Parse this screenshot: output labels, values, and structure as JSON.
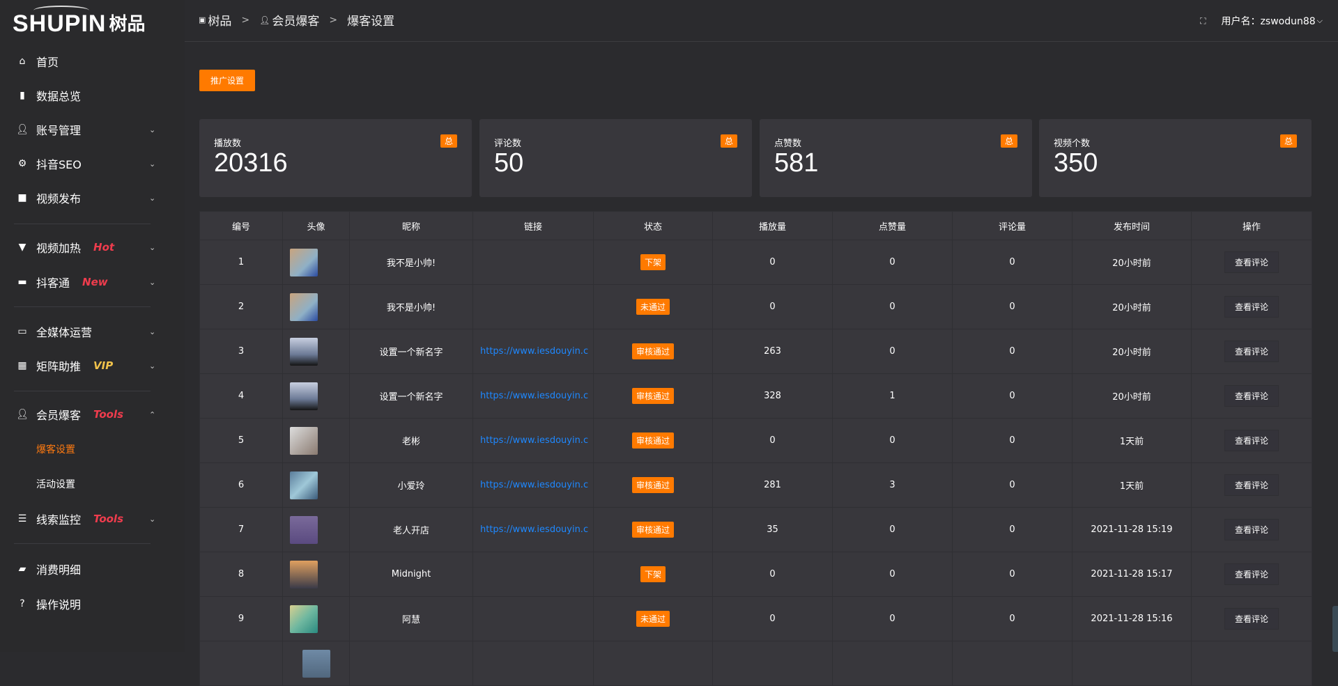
{
  "logo": {
    "text": "SHUPIN",
    "cn": "树品"
  },
  "breadcrumb": [
    {
      "label": "树品",
      "icon": "image-icon"
    },
    {
      "label": "会员爆客",
      "icon": "user-icon"
    },
    {
      "label": "爆客设置"
    }
  ],
  "breadcrumb_sep": ">",
  "user": {
    "label": "用户名：zswodun88",
    "chevron": "⌵"
  },
  "sidebar": {
    "items": [
      {
        "label": "首页",
        "icon": "home-icon"
      },
      {
        "label": "数据总览",
        "icon": "bar-chart-icon"
      },
      {
        "label": "账号管理",
        "icon": "user-icon",
        "chevron": "⌄"
      },
      {
        "label": "抖音SEO",
        "icon": "gear-icon",
        "chevron": "⌄"
      },
      {
        "label": "视频发布",
        "icon": "camera-icon",
        "chevron": "⌄"
      },
      {
        "label": "视频加热",
        "icon": "signboard-icon",
        "tag": "Hot",
        "chevron": "⌄"
      },
      {
        "label": "抖客通",
        "icon": "chat-icon",
        "tag": "New",
        "chevron": "⌄"
      },
      {
        "label": "全媒体运营",
        "icon": "monitor-icon",
        "chevron": "⌄"
      },
      {
        "label": "矩阵助推",
        "icon": "grid-icon",
        "tag": "VIP",
        "chevron": "⌄"
      },
      {
        "label": "会员爆客",
        "icon": "user-icon",
        "tag": "Tools",
        "chevron": "⌃"
      },
      {
        "label": "线索监控",
        "icon": "sliders-icon",
        "tag": "Tools",
        "chevron": "⌄"
      },
      {
        "label": "消费明细",
        "icon": "wallet-icon"
      },
      {
        "label": "操作说明",
        "icon": "help-icon"
      }
    ],
    "subitems": [
      {
        "label": "爆客设置",
        "active": true
      },
      {
        "label": "活动设置"
      }
    ]
  },
  "promo_button": "推广设置",
  "stats": [
    {
      "label": "播放数",
      "value": "20316",
      "badge": "总"
    },
    {
      "label": "评论数",
      "value": "50",
      "badge": "总"
    },
    {
      "label": "点赞数",
      "value": "581",
      "badge": "总"
    },
    {
      "label": "视频个数",
      "value": "350",
      "badge": "总"
    }
  ],
  "table": {
    "headers": [
      "编号",
      "头像",
      "昵称",
      "链接",
      "状态",
      "播放量",
      "点赞量",
      "评论量",
      "发布时间",
      "操作"
    ],
    "rows": [
      {
        "id": "1",
        "nick": "我不是小帅!",
        "link": "",
        "status": "下架",
        "plays": "0",
        "likes": "0",
        "comments": "0",
        "time": "20小时前",
        "action": "查看评论"
      },
      {
        "id": "2",
        "nick": "我不是小帅!",
        "link": "",
        "status": "未通过",
        "plays": "0",
        "likes": "0",
        "comments": "0",
        "time": "20小时前",
        "action": "查看评论"
      },
      {
        "id": "3",
        "nick": "设置一个新名字",
        "link": "https://www.iesdouyin.c",
        "status": "审核通过",
        "plays": "263",
        "likes": "0",
        "comments": "0",
        "time": "20小时前",
        "action": "查看评论"
      },
      {
        "id": "4",
        "nick": "设置一个新名字",
        "link": "https://www.iesdouyin.c",
        "status": "审核通过",
        "plays": "328",
        "likes": "1",
        "comments": "0",
        "time": "20小时前",
        "action": "查看评论"
      },
      {
        "id": "5",
        "nick": "老彬",
        "link": "https://www.iesdouyin.c",
        "status": "审核通过",
        "plays": "0",
        "likes": "0",
        "comments": "0",
        "time": "1天前",
        "action": "查看评论"
      },
      {
        "id": "6",
        "nick": "小爱玲",
        "link": "https://www.iesdouyin.c",
        "status": "审核通过",
        "plays": "281",
        "likes": "3",
        "comments": "0",
        "time": "1天前",
        "action": "查看评论"
      },
      {
        "id": "7",
        "nick": "老人开店",
        "link": "https://www.iesdouyin.c",
        "status": "审核通过",
        "plays": "35",
        "likes": "0",
        "comments": "0",
        "time": "2021-11-28 15:19",
        "action": "查看评论"
      },
      {
        "id": "8",
        "nick": "Midnight",
        "link": "",
        "status": "下架",
        "plays": "0",
        "likes": "0",
        "comments": "0",
        "time": "2021-11-28 15:17",
        "action": "查看评论"
      },
      {
        "id": "9",
        "nick": "阿慧",
        "link": "",
        "status": "未通过",
        "plays": "0",
        "likes": "0",
        "comments": "0",
        "time": "2021-11-28 15:16",
        "action": "查看评论"
      }
    ]
  },
  "colors": {
    "accent": "#ff7a00",
    "link": "#1e88ff",
    "tag_red": "#ef3c4d",
    "tag_vip": "#f0c24b"
  }
}
